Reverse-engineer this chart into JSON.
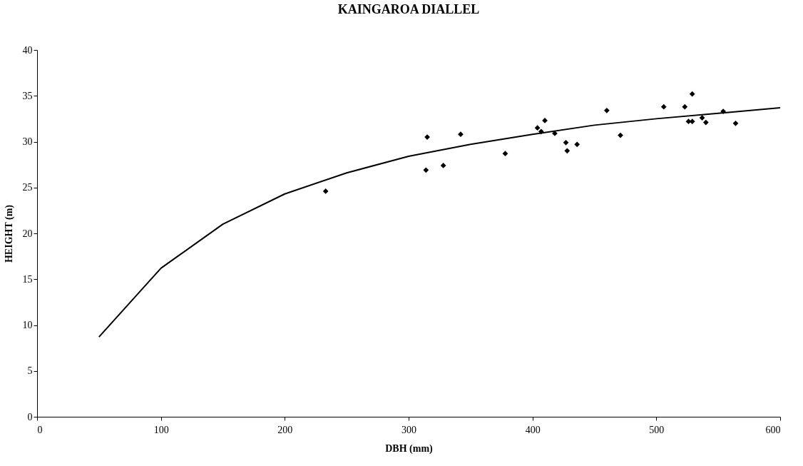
{
  "chart_data": {
    "type": "scatter",
    "title": "KAINGAROA DIALLEL",
    "xlabel": "DBH (mm)",
    "ylabel": "HEIGHT (m)",
    "xlim": [
      0,
      600
    ],
    "xticks": [
      0,
      100,
      200,
      300,
      400,
      500,
      600
    ],
    "ylim": [
      0,
      40
    ],
    "yticks": [
      0,
      5,
      10,
      15,
      20,
      25,
      30,
      35,
      40
    ],
    "grid": false,
    "series": [
      {
        "marker": "diamond",
        "color": "#000000",
        "x": [
          233,
          314,
          315,
          328,
          342,
          378,
          404,
          407,
          410,
          418,
          427,
          428,
          436,
          460,
          471,
          506,
          523,
          526,
          529,
          529,
          537,
          540,
          554,
          564
        ],
        "values": [
          24.6,
          26.9,
          30.5,
          27.4,
          30.8,
          28.7,
          31.5,
          31.1,
          32.3,
          30.9,
          29.9,
          29.0,
          29.7,
          33.4,
          30.7,
          33.8,
          33.8,
          32.2,
          32.2,
          35.2,
          32.6,
          32.1,
          33.3,
          32.0
        ]
      },
      {
        "type": "line",
        "marker": "none",
        "line_style": "solid",
        "color": "#000000",
        "x": [
          50,
          100,
          150,
          200,
          250,
          300,
          350,
          400,
          450,
          500,
          550,
          600
        ],
        "values": [
          8.7,
          16.2,
          21.0,
          24.3,
          26.6,
          28.4,
          29.7,
          30.8,
          31.8,
          32.5,
          33.1,
          33.7
        ]
      }
    ]
  }
}
